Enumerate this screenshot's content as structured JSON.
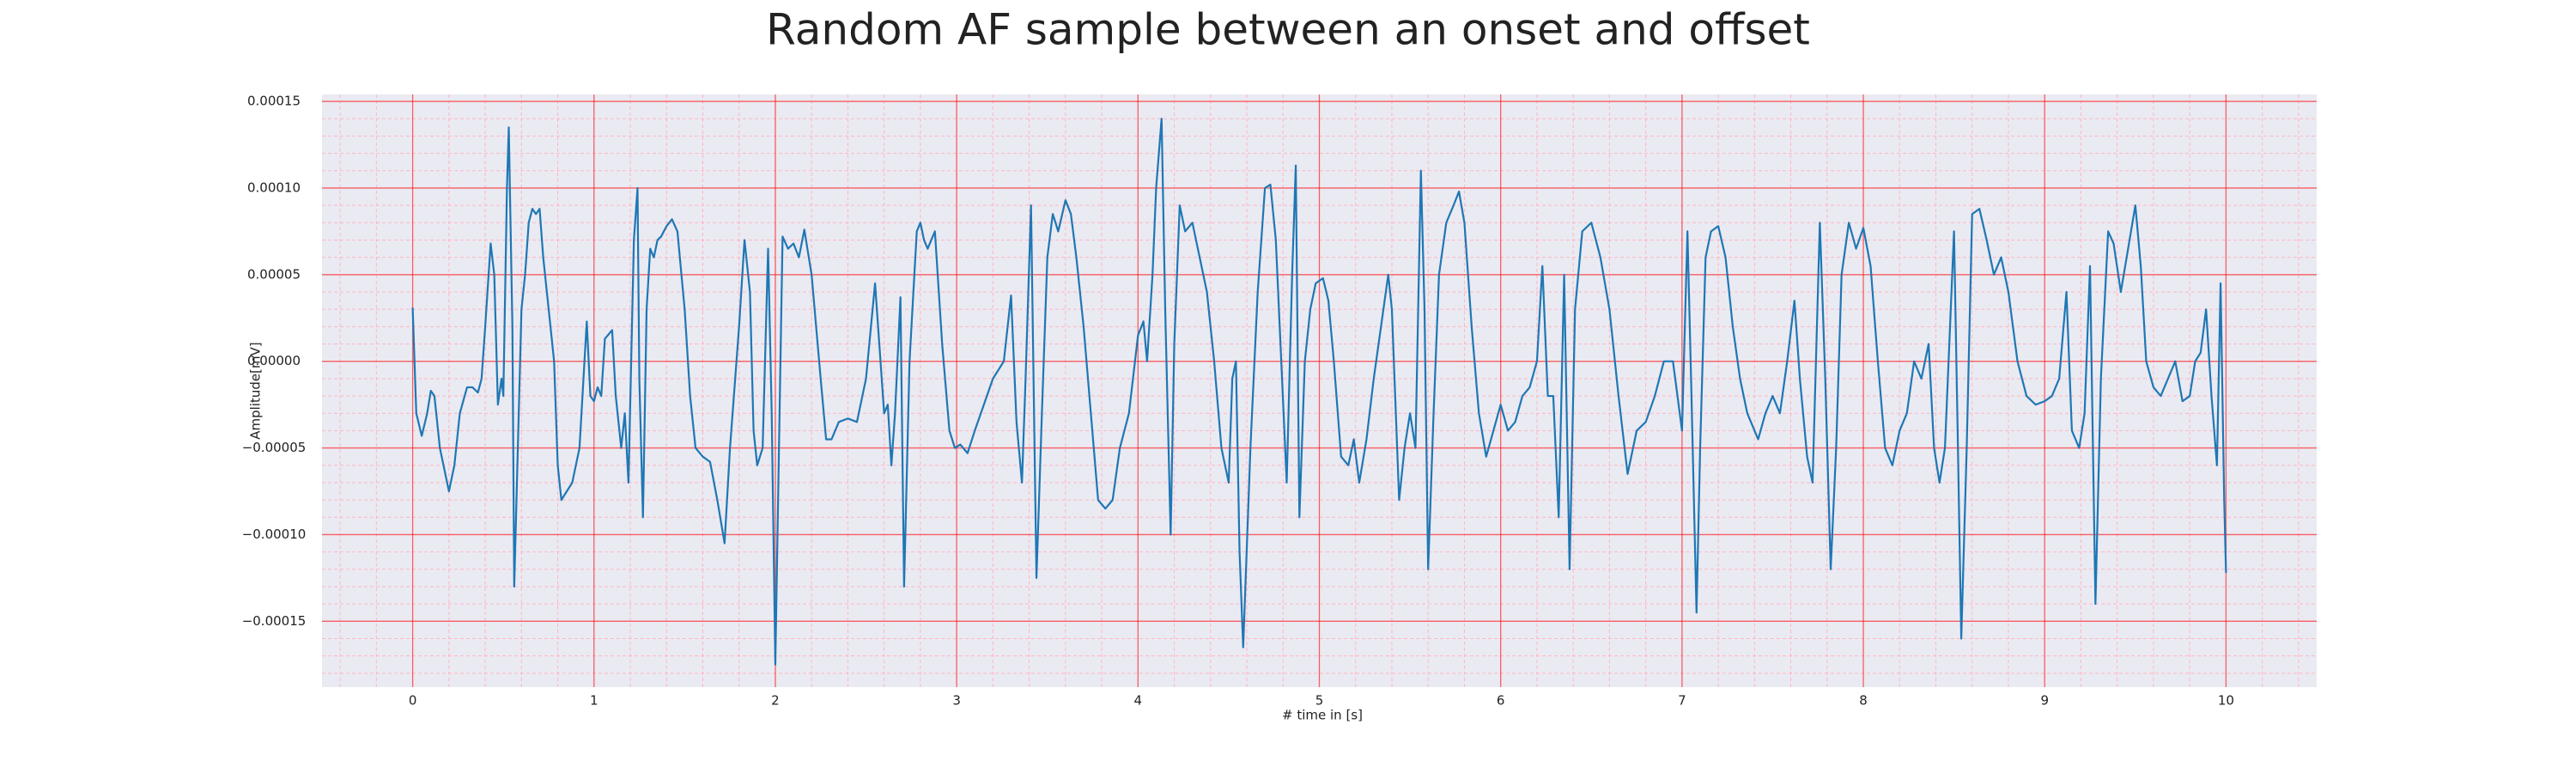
{
  "chart_data": {
    "type": "line",
    "title": "Random AF sample between an onset and offset",
    "xlabel": "# time in [s]",
    "ylabel": "Amplitude[mV]",
    "xlim": [
      -0.5,
      10.5
    ],
    "ylim": [
      -0.000188,
      0.000154
    ],
    "xticks": [
      0,
      1,
      2,
      3,
      4,
      5,
      6,
      7,
      8,
      9,
      10
    ],
    "yticks": [
      {
        "value": -0.00015,
        "label": "−0.00015"
      },
      {
        "value": -0.0001,
        "label": "−0.00010"
      },
      {
        "value": -5e-05,
        "label": "−0.00005"
      },
      {
        "value": 0,
        "label": "0.00000"
      },
      {
        "value": 5e-05,
        "label": "0.00005"
      },
      {
        "value": 0.0001,
        "label": "0.00010"
      },
      {
        "value": 0.00015,
        "label": "0.00015"
      }
    ],
    "xminorticks": [
      -0.4,
      -0.2,
      0.2,
      0.4,
      0.6,
      0.8,
      1.2,
      1.4,
      1.6,
      1.8,
      2.2,
      2.4,
      2.6,
      2.8,
      3.2,
      3.4,
      3.6,
      3.8,
      4.2,
      4.4,
      4.6,
      4.8,
      5.2,
      5.4,
      5.6,
      5.8,
      6.2,
      6.4,
      6.6,
      6.8,
      7.2,
      7.4,
      7.6,
      7.8,
      8.2,
      8.4,
      8.6,
      8.8,
      9.2,
      9.4,
      9.6,
      9.8,
      10.2,
      10.4
    ],
    "yminorticks": [
      -0.00018,
      -0.00017,
      -0.00016,
      -0.00014,
      -0.00013,
      -0.00012,
      -0.00011,
      -9e-05,
      -8e-05,
      -7e-05,
      -6e-05,
      -4e-05,
      -3e-05,
      -2e-05,
      -1e-05,
      1e-05,
      2e-05,
      3e-05,
      4e-05,
      6e-05,
      7e-05,
      8e-05,
      9e-05,
      0.00011,
      0.00012,
      0.00013,
      0.00014
    ],
    "grid": true,
    "grid_color": "#ff0000",
    "minor_grid_color": "#ffb6c1",
    "background": "#eaeaf2",
    "series": [
      {
        "color": "#1f77b4",
        "x": [
          0,
          0.02,
          0.05,
          0.08,
          0.1,
          0.12,
          0.15,
          0.2,
          0.23,
          0.26,
          0.3,
          0.33,
          0.36,
          0.38,
          0.4,
          0.43,
          0.45,
          0.47,
          0.49,
          0.5,
          0.52,
          0.53,
          0.55,
          0.56,
          0.58,
          0.6,
          0.62,
          0.64,
          0.66,
          0.68,
          0.7,
          0.72,
          0.75,
          0.78,
          0.8,
          0.82,
          0.85,
          0.88,
          0.92,
          0.96,
          0.98,
          1.0,
          1.02,
          1.04,
          1.06,
          1.1,
          1.12,
          1.15,
          1.17,
          1.19,
          1.22,
          1.24,
          1.25,
          1.27,
          1.29,
          1.31,
          1.33,
          1.35,
          1.37,
          1.4,
          1.43,
          1.46,
          1.5,
          1.53,
          1.56,
          1.6,
          1.64,
          1.68,
          1.72,
          1.75,
          1.8,
          1.83,
          1.86,
          1.88,
          1.9,
          1.93,
          1.96,
          1.98,
          2.0,
          2.02,
          2.04,
          2.07,
          2.1,
          2.13,
          2.16,
          2.2,
          2.25,
          2.28,
          2.31,
          2.35,
          2.4,
          2.45,
          2.5,
          2.55,
          2.58,
          2.6,
          2.62,
          2.64,
          2.66,
          2.69,
          2.71,
          2.74,
          2.78,
          2.8,
          2.82,
          2.84,
          2.88,
          2.92,
          2.96,
          2.99,
          3.02,
          3.06,
          3.1,
          3.15,
          3.2,
          3.26,
          3.3,
          3.33,
          3.36,
          3.38,
          3.41,
          3.44,
          3.47,
          3.5,
          3.53,
          3.56,
          3.6,
          3.63,
          3.66,
          3.7,
          3.74,
          3.78,
          3.82,
          3.86,
          3.9,
          3.95,
          4.0,
          4.03,
          4.05,
          4.08,
          4.1,
          4.13,
          4.15,
          4.18,
          4.2,
          4.23,
          4.26,
          4.3,
          4.34,
          4.38,
          4.42,
          4.46,
          4.5,
          4.52,
          4.54,
          4.56,
          4.58,
          4.62,
          4.66,
          4.7,
          4.73,
          4.76,
          4.79,
          4.82,
          4.85,
          4.87,
          4.89,
          4.92,
          4.95,
          4.98,
          5.02,
          5.05,
          5.08,
          5.12,
          5.16,
          5.19,
          5.22,
          5.26,
          5.3,
          5.34,
          5.38,
          5.4,
          5.44,
          5.47,
          5.5,
          5.53,
          5.56,
          5.58,
          5.6,
          5.63,
          5.66,
          5.7,
          5.74,
          5.77,
          5.8,
          5.84,
          5.88,
          5.92,
          5.96,
          6.0,
          6.04,
          6.08,
          6.12,
          6.16,
          6.2,
          6.23,
          6.26,
          6.29,
          6.32,
          6.35,
          6.38,
          6.41,
          6.45,
          6.5,
          6.55,
          6.6,
          6.65,
          6.7,
          6.75,
          6.8,
          6.85,
          6.9,
          6.95,
          7.0,
          7.03,
          7.05,
          7.08,
          7.1,
          7.13,
          7.16,
          7.2,
          7.24,
          7.28,
          7.32,
          7.36,
          7.42,
          7.46,
          7.5,
          7.54,
          7.58,
          7.62,
          7.65,
          7.69,
          7.72,
          7.76,
          7.79,
          7.82,
          7.85,
          7.88,
          7.92,
          7.96,
          8.0,
          8.04,
          8.08,
          8.12,
          8.16,
          8.2,
          8.24,
          8.28,
          8.32,
          8.36,
          8.39,
          8.42,
          8.45,
          8.5,
          8.52,
          8.54,
          8.57,
          8.6,
          8.64,
          8.68,
          8.72,
          8.76,
          8.8,
          8.85,
          8.9,
          8.95,
          9.0,
          9.04,
          9.08,
          9.12,
          9.15,
          9.19,
          9.22,
          9.25,
          9.28,
          9.31,
          9.35,
          9.38,
          9.42,
          9.46,
          9.5,
          9.53,
          9.56,
          9.6,
          9.64,
          9.68,
          9.72,
          9.76,
          9.8,
          9.83,
          9.86,
          9.89,
          9.92,
          9.95,
          9.97,
          9.99,
          10.0
        ],
        "values": [
          3.1e-05,
          -3e-05,
          -4.3e-05,
          -3e-05,
          -1.7e-05,
          -2e-05,
          -5e-05,
          -7.5e-05,
          -6e-05,
          -3e-05,
          -1.5e-05,
          -1.5e-05,
          -1.8e-05,
          -1e-05,
          2e-05,
          6.8e-05,
          5e-05,
          -2.5e-05,
          -1e-05,
          -2e-05,
          0.0001,
          0.000135,
          2e-05,
          -0.00013,
          -5e-05,
          3e-05,
          5e-05,
          8e-05,
          8.8e-05,
          8.5e-05,
          8.8e-05,
          6e-05,
          3e-05,
          0,
          -6e-05,
          -8e-05,
          -7.5e-05,
          -7e-05,
          -5e-05,
          2.3e-05,
          -2e-05,
          -2.3e-05,
          -1.5e-05,
          -2e-05,
          1.3e-05,
          1.8e-05,
          -2e-05,
          -5e-05,
          -3e-05,
          -7e-05,
          7e-05,
          0.0001,
          -1e-05,
          -9e-05,
          3e-05,
          6.5e-05,
          6e-05,
          7e-05,
          7.2e-05,
          7.8e-05,
          8.2e-05,
          7.5e-05,
          3e-05,
          -2e-05,
          -5e-05,
          -5.5e-05,
          -5.8e-05,
          -8e-05,
          -0.000105,
          -5e-05,
          2e-05,
          7e-05,
          4e-05,
          -4e-05,
          -6e-05,
          -5e-05,
          6.5e-05,
          -3e-05,
          -0.000175,
          -5e-05,
          7.2e-05,
          6.5e-05,
          6.8e-05,
          6e-05,
          7.6e-05,
          5e-05,
          -1e-05,
          -4.5e-05,
          -4.5e-05,
          -3.5e-05,
          -3.3e-05,
          -3.5e-05,
          -1e-05,
          4.5e-05,
          0,
          -3e-05,
          -2.5e-05,
          -6e-05,
          -3e-05,
          3.7e-05,
          -0.00013,
          0,
          7.5e-05,
          8e-05,
          7e-05,
          6.5e-05,
          7.5e-05,
          1e-05,
          -4e-05,
          -5e-05,
          -4.8e-05,
          -5.3e-05,
          -4e-05,
          -2.5e-05,
          -1e-05,
          0,
          3.8e-05,
          -3.5e-05,
          -7e-05,
          -1e-05,
          9e-05,
          -0.000125,
          -3e-05,
          6e-05,
          8.5e-05,
          7.5e-05,
          9.3e-05,
          8.5e-05,
          6e-05,
          2e-05,
          -3e-05,
          -8e-05,
          -8.5e-05,
          -8e-05,
          -5e-05,
          -3e-05,
          1.5e-05,
          2.3e-05,
          0,
          5e-05,
          0.0001,
          0.00014,
          3e-05,
          -0.0001,
          1e-05,
          9e-05,
          7.5e-05,
          8e-05,
          6e-05,
          4e-05,
          0,
          -5e-05,
          -7e-05,
          -1e-05,
          0,
          -0.00011,
          -0.000165,
          -5e-05,
          4e-05,
          0.0001,
          0.000102,
          7e-05,
          0,
          -7e-05,
          5e-05,
          0.000113,
          -9e-05,
          0,
          3e-05,
          4.5e-05,
          4.8e-05,
          3.5e-05,
          0,
          -5.5e-05,
          -6e-05,
          -4.5e-05,
          -7e-05,
          -4.5e-05,
          -1e-05,
          2e-05,
          5e-05,
          3e-05,
          -8e-05,
          -5e-05,
          -3e-05,
          -5e-05,
          0.00011,
          3e-05,
          -0.00012,
          -3e-05,
          5e-05,
          8e-05,
          9e-05,
          9.8e-05,
          8e-05,
          2e-05,
          -3e-05,
          -5.5e-05,
          -4e-05,
          -2.5e-05,
          -4e-05,
          -3.5e-05,
          -2e-05,
          -1.5e-05,
          0,
          5.5e-05,
          -2e-05,
          -2e-05,
          -9e-05,
          5e-05,
          -0.00012,
          3e-05,
          7.5e-05,
          8e-05,
          6e-05,
          3e-05,
          -2e-05,
          -6.5e-05,
          -4e-05,
          -3.5e-05,
          -2e-05,
          0,
          0,
          -4e-05,
          7.5e-05,
          -1e-05,
          -0.000145,
          -5e-05,
          6e-05,
          7.5e-05,
          7.8e-05,
          6e-05,
          2e-05,
          -1e-05,
          -3e-05,
          -4.5e-05,
          -3e-05,
          -2e-05,
          -3e-05,
          0,
          3.5e-05,
          -1e-05,
          -5.5e-05,
          -7e-05,
          8e-05,
          -1e-05,
          -0.00012,
          -5e-05,
          5e-05,
          8e-05,
          6.5e-05,
          7.7e-05,
          5.5e-05,
          0,
          -5e-05,
          -6e-05,
          -4e-05,
          -3e-05,
          0,
          -1e-05,
          1e-05,
          -5e-05,
          -7e-05,
          -5e-05,
          7.5e-05,
          -4e-05,
          -0.00016,
          -5e-05,
          8.5e-05,
          8.8e-05,
          7e-05,
          5e-05,
          6e-05,
          4e-05,
          0,
          -2e-05,
          -2.5e-05,
          -2.3e-05,
          -2e-05,
          -1e-05,
          4e-05,
          -4e-05,
          -5e-05,
          -3e-05,
          5.5e-05,
          -0.00014,
          -1e-05,
          7.5e-05,
          6.8e-05,
          4e-05,
          6.5e-05,
          9e-05,
          5.5e-05,
          0,
          -1.5e-05,
          -2e-05,
          -1e-05,
          0,
          -2.3e-05,
          -2e-05,
          0,
          5e-06,
          3e-05,
          -2e-05,
          -6e-05,
          4.5e-05,
          -8e-05,
          -0.000122
        ]
      }
    ]
  }
}
